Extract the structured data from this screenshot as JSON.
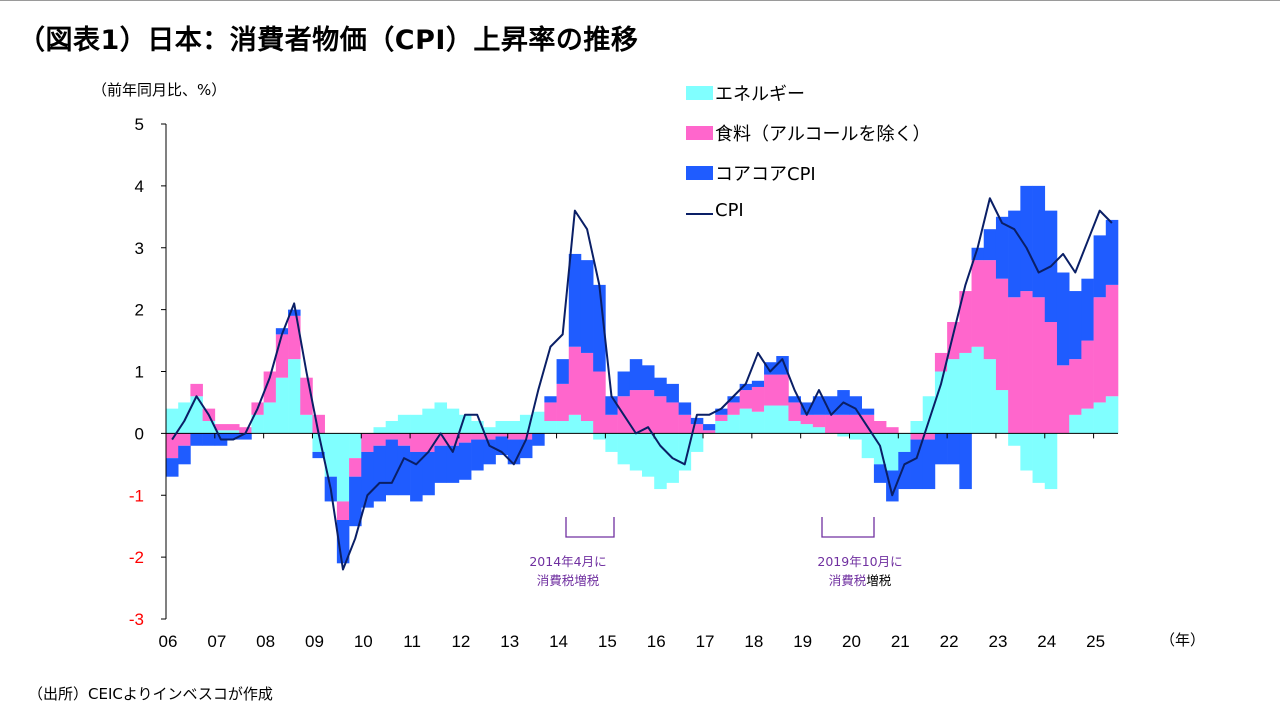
{
  "title": "（図表1）日本：消費者物価（CPI）上昇率の推移",
  "unit_label": "（前年同月比、%）",
  "x_unit_label": "（年）",
  "source": "（出所）CEICよりインベスコが作成",
  "legend": [
    {
      "label": "エネルギー",
      "kind": "bar",
      "color": "#80ffff"
    },
    {
      "label": "食料（アルコールを除く）",
      "kind": "bar",
      "color": "#ff66cc"
    },
    {
      "label": "コアコアCPI",
      "kind": "bar",
      "color": "#1f5cff"
    },
    {
      "label": "CPI",
      "kind": "line",
      "color": "#0a1f66"
    }
  ],
  "annotations": [
    {
      "line1": "2014年4月に",
      "line2a": "消費税増税",
      "line2b": ""
    },
    {
      "line1": "2019年10月に",
      "line2a": "消費税",
      "line2b": "増税"
    }
  ],
  "chart_data": {
    "type": "bar",
    "stacked": true,
    "ylim": [
      -3,
      5
    ],
    "yticks": [
      "5",
      "4",
      "3",
      "2",
      "1",
      "0",
      "-1",
      "-2",
      "-3"
    ],
    "negative_tick_color": "#ff0000",
    "x_tick_labels": [
      "06",
      "07",
      "08",
      "09",
      "10",
      "11",
      "12",
      "13",
      "14",
      "15",
      "16",
      "17",
      "18",
      "19",
      "20",
      "21",
      "22",
      "23",
      "24",
      "25"
    ],
    "x_start": "2006-01",
    "frequency": "quarterly",
    "categories": [
      "06Q1",
      "06Q2",
      "06Q3",
      "06Q4",
      "07Q1",
      "07Q2",
      "07Q3",
      "07Q4",
      "08Q1",
      "08Q2",
      "08Q3",
      "08Q4",
      "09Q1",
      "09Q2",
      "09Q3",
      "09Q4",
      "10Q1",
      "10Q2",
      "10Q3",
      "10Q4",
      "11Q1",
      "11Q2",
      "11Q3",
      "11Q4",
      "12Q1",
      "12Q2",
      "12Q3",
      "12Q4",
      "13Q1",
      "13Q2",
      "13Q3",
      "13Q4",
      "14Q1",
      "14Q2",
      "14Q3",
      "14Q4",
      "15Q1",
      "15Q2",
      "15Q3",
      "15Q4",
      "16Q1",
      "16Q2",
      "16Q3",
      "16Q4",
      "17Q1",
      "17Q2",
      "17Q3",
      "17Q4",
      "18Q1",
      "18Q2",
      "18Q3",
      "18Q4",
      "19Q1",
      "19Q2",
      "19Q3",
      "19Q4",
      "20Q1",
      "20Q2",
      "20Q3",
      "20Q4",
      "21Q1",
      "21Q2",
      "21Q3",
      "21Q4",
      "22Q1",
      "22Q2",
      "22Q3",
      "22Q4",
      "23Q1",
      "23Q2",
      "23Q3",
      "23Q4",
      "24Q1",
      "24Q2",
      "24Q3",
      "24Q4",
      "25Q1",
      "25Q2"
    ],
    "series": [
      {
        "name": "エネルギー",
        "color": "#80ffff",
        "values": [
          0.4,
          0.5,
          0.6,
          0.2,
          0.05,
          0.05,
          0.0,
          0.3,
          0.5,
          0.9,
          1.2,
          0.3,
          -0.3,
          -0.7,
          -1.1,
          -0.4,
          0.0,
          0.1,
          0.2,
          0.3,
          0.3,
          0.4,
          0.5,
          0.4,
          0.3,
          0.2,
          0.1,
          0.2,
          0.2,
          0.3,
          0.35,
          0.2,
          0.2,
          0.3,
          0.2,
          -0.1,
          -0.3,
          -0.5,
          -0.6,
          -0.7,
          -0.9,
          -0.8,
          -0.6,
          -0.3,
          0.0,
          0.2,
          0.3,
          0.4,
          0.35,
          0.45,
          0.45,
          0.2,
          0.15,
          0.1,
          0.0,
          -0.05,
          -0.1,
          -0.4,
          -0.5,
          -0.6,
          -0.3,
          0.2,
          0.6,
          1.0,
          1.2,
          1.3,
          1.4,
          1.2,
          0.7,
          -0.2,
          -0.6,
          -0.8,
          -0.9,
          0.0,
          0.3,
          0.4,
          0.5,
          0.6
        ]
      },
      {
        "name": "食料（アルコールを除く）",
        "color": "#ff66cc",
        "values": [
          -0.4,
          -0.2,
          0.2,
          0.2,
          0.1,
          0.1,
          0.1,
          0.2,
          0.5,
          0.7,
          0.7,
          0.6,
          0.3,
          0.0,
          -0.3,
          -0.3,
          -0.3,
          -0.2,
          -0.1,
          -0.2,
          -0.3,
          -0.3,
          -0.2,
          -0.2,
          -0.15,
          -0.1,
          -0.1,
          -0.05,
          -0.1,
          -0.1,
          0.0,
          0.3,
          0.6,
          1.1,
          1.1,
          1.0,
          0.3,
          0.6,
          0.7,
          0.7,
          0.6,
          0.5,
          0.3,
          0.15,
          0.05,
          0.1,
          0.2,
          0.3,
          0.4,
          0.5,
          0.5,
          0.3,
          0.15,
          0.2,
          0.3,
          0.3,
          0.3,
          0.3,
          0.2,
          0.1,
          0.0,
          -0.1,
          -0.1,
          0.3,
          0.6,
          1.0,
          1.4,
          1.6,
          1.8,
          2.2,
          2.3,
          2.2,
          1.8,
          1.1,
          0.9,
          1.1,
          1.7,
          1.8
        ]
      },
      {
        "name": "コアコアCPI",
        "color": "#1f5cff",
        "values": [
          -0.3,
          -0.3,
          -0.2,
          -0.2,
          -0.2,
          -0.1,
          -0.1,
          0.0,
          0.0,
          0.1,
          0.1,
          0.0,
          -0.1,
          -0.4,
          -0.7,
          -0.8,
          -0.9,
          -0.9,
          -0.9,
          -0.8,
          -0.8,
          -0.7,
          -0.6,
          -0.6,
          -0.6,
          -0.5,
          -0.4,
          -0.3,
          -0.4,
          -0.3,
          -0.2,
          0.1,
          0.4,
          1.5,
          1.5,
          1.4,
          0.3,
          0.4,
          0.5,
          0.4,
          0.3,
          0.3,
          0.2,
          0.1,
          0.1,
          0.1,
          0.1,
          0.1,
          0.1,
          0.2,
          0.3,
          0.1,
          0.2,
          0.3,
          0.3,
          0.4,
          0.3,
          0.1,
          -0.3,
          -0.5,
          -0.6,
          -0.8,
          -0.8,
          -0.5,
          -0.5,
          -0.9,
          0.2,
          0.5,
          1.0,
          1.4,
          1.7,
          1.8,
          1.8,
          1.5,
          1.1,
          1.0,
          1.0,
          1.05
        ]
      },
      {
        "name": "CPI",
        "color": "#0a1f66",
        "type": "line",
        "values": [
          -0.1,
          0.2,
          0.6,
          0.3,
          -0.1,
          -0.1,
          0.0,
          0.4,
          0.9,
          1.6,
          2.1,
          1.0,
          0.0,
          -0.9,
          -2.2,
          -1.7,
          -1.0,
          -0.8,
          -0.8,
          -0.4,
          -0.5,
          -0.3,
          0.0,
          -0.3,
          0.3,
          0.3,
          -0.2,
          -0.3,
          -0.5,
          -0.1,
          0.7,
          1.4,
          1.6,
          3.6,
          3.3,
          2.4,
          0.6,
          0.3,
          0.0,
          0.1,
          -0.2,
          -0.4,
          -0.5,
          0.3,
          0.3,
          0.4,
          0.6,
          0.8,
          1.3,
          1.0,
          1.2,
          0.7,
          0.3,
          0.7,
          0.3,
          0.5,
          0.4,
          0.1,
          -0.2,
          -1.0,
          -0.5,
          -0.4,
          0.2,
          0.8,
          1.6,
          2.4,
          3.0,
          3.8,
          3.4,
          3.3,
          3.0,
          2.6,
          2.7,
          2.9,
          2.6,
          3.1,
          3.6,
          3.4
        ]
      }
    ]
  }
}
